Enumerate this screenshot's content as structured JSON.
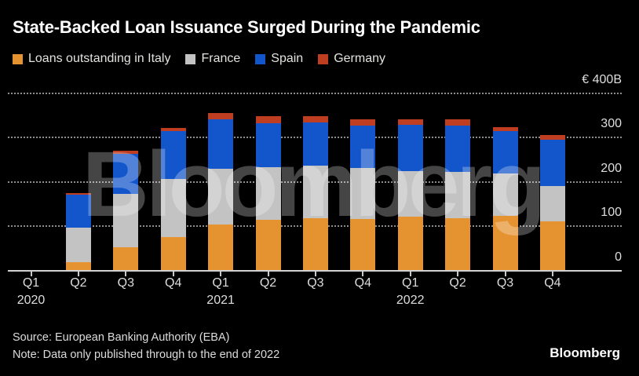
{
  "header": {
    "title": "State-Backed Loan Issuance Surged During the Pandemic"
  },
  "watermark": "Bloomberg",
  "chart_data": {
    "type": "bar",
    "stacked": true,
    "title": "State-Backed Loan Issuance Surged During the Pandemic",
    "unit": "EUR billions",
    "grid": "horizontal-dotted",
    "legend_position": "top",
    "ylim": [
      0,
      400
    ],
    "categories": [
      "Q1 2020",
      "Q2 2020",
      "Q3 2020",
      "Q4 2020",
      "Q1 2021",
      "Q2 2021",
      "Q3 2021",
      "Q4 2021",
      "Q1 2022",
      "Q2 2022",
      "Q3 2022",
      "Q4 2022"
    ],
    "x_ticks": [
      {
        "label": "Q1",
        "year": "2020"
      },
      {
        "label": "Q2"
      },
      {
        "label": "Q3"
      },
      {
        "label": "Q4"
      },
      {
        "label": "Q1",
        "year": "2021"
      },
      {
        "label": "Q2"
      },
      {
        "label": "Q3"
      },
      {
        "label": "Q4"
      },
      {
        "label": "Q1",
        "year": "2022"
      },
      {
        "label": "Q2"
      },
      {
        "label": "Q3"
      },
      {
        "label": "Q4"
      }
    ],
    "y_ticks": [
      {
        "value": 0,
        "label": "0"
      },
      {
        "value": 100,
        "label": "100"
      },
      {
        "value": 200,
        "label": "200"
      },
      {
        "value": 300,
        "label": "300"
      },
      {
        "value": 400,
        "label": "€ 400B"
      }
    ],
    "series": [
      {
        "name": "Loans outstanding in Italy",
        "color": "#E59330",
        "values": [
          0,
          19,
          52,
          76,
          103,
          114,
          118,
          117,
          122,
          118,
          124,
          110
        ]
      },
      {
        "name": "France",
        "color": "#C3C3C3",
        "values": [
          0,
          78,
          121,
          130,
          127,
          119,
          118,
          115,
          102,
          104,
          95,
          81
        ]
      },
      {
        "name": "Spain",
        "color": "#1356CB",
        "values": [
          0,
          74,
          90,
          108,
          112,
          99,
          98,
          95,
          105,
          105,
          96,
          105
        ]
      },
      {
        "name": "Germany",
        "color": "#BF3D20",
        "values": [
          0,
          4,
          7,
          8,
          13,
          16,
          15,
          15,
          12,
          14,
          8,
          10
        ]
      }
    ]
  },
  "footer": {
    "source": "Source: European Banking Authority (EBA)",
    "note": "Note: Data only published through to the end of 2022",
    "logo": "Bloomberg"
  }
}
